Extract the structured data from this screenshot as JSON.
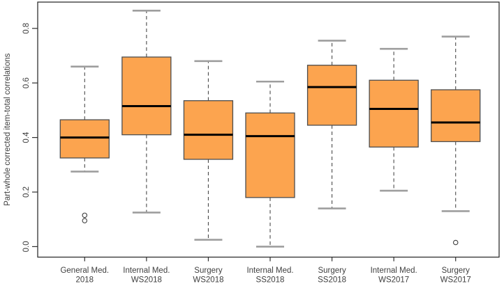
{
  "figure": {
    "background": "#ffffff"
  },
  "chart_data": {
    "type": "boxplot",
    "title": "",
    "xlabel": "",
    "ylabel": "Part-whole corrected item-total correlations",
    "ylim": [
      -0.04,
      0.9
    ],
    "ytick_labels": [
      "0.0",
      "0.2",
      "0.4",
      "0.6",
      "0.8"
    ],
    "ytick_values": [
      0.0,
      0.2,
      0.4,
      0.6,
      0.8
    ],
    "grid": false,
    "legend_position": "none",
    "colors": {
      "box_fill": "#FCA44F",
      "box_stroke": "#4d4d4d",
      "median": "#000000",
      "whisker": "#4a4a4a",
      "whisker_cap": "#9e9e9e",
      "axis": "#2f2f2f",
      "text": "#3f3f3f",
      "outlier": "#3f3f3f"
    },
    "boxes": [
      {
        "label": [
          "General Med.",
          "2018"
        ],
        "whisker_low": 0.275,
        "q1": 0.325,
        "median": 0.4,
        "q3": 0.465,
        "whisker_high": 0.66,
        "outliers": [
          0.115,
          0.095
        ]
      },
      {
        "label": [
          "Internal Med.",
          "WS2018"
        ],
        "whisker_low": 0.125,
        "q1": 0.41,
        "median": 0.515,
        "q3": 0.695,
        "whisker_high": 0.865,
        "outliers": []
      },
      {
        "label": [
          "Surgery",
          "WS2018"
        ],
        "whisker_low": 0.025,
        "q1": 0.32,
        "median": 0.41,
        "q3": 0.535,
        "whisker_high": 0.68,
        "outliers": []
      },
      {
        "label": [
          "Internal Med.",
          "SS2018"
        ],
        "whisker_low": 0.0,
        "q1": 0.18,
        "median": 0.405,
        "q3": 0.49,
        "whisker_high": 0.605,
        "outliers": []
      },
      {
        "label": [
          "Surgery",
          "SS2018"
        ],
        "whisker_low": 0.14,
        "q1": 0.445,
        "median": 0.585,
        "q3": 0.665,
        "whisker_high": 0.755,
        "outliers": []
      },
      {
        "label": [
          "Internal Med.",
          "WS2017"
        ],
        "whisker_low": 0.205,
        "q1": 0.365,
        "median": 0.505,
        "q3": 0.61,
        "whisker_high": 0.725,
        "outliers": []
      },
      {
        "label": [
          "Surgery",
          "WS2017"
        ],
        "whisker_low": 0.13,
        "q1": 0.385,
        "median": 0.455,
        "q3": 0.575,
        "whisker_high": 0.77,
        "outliers": [
          0.015
        ]
      }
    ]
  }
}
